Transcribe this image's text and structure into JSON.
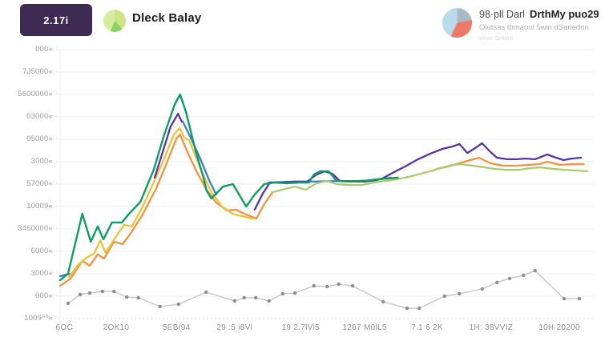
{
  "header": {
    "badge_label": "2.17i",
    "title": "Dleck Balay",
    "legend": {
      "line1_regular": "98·pll Darl",
      "line1_bold": "DrthMy puo29",
      "line2": "Olutsas tbmaoul 5win dSarledon",
      "line3": "Wost Grharti"
    }
  },
  "colors": {
    "badge_bg": "#3e2a53",
    "pie1_light": "#d6ec9f",
    "pie1_mid": "#c9e587",
    "pie1_dark": "#8ad364",
    "pie2_blue": "#b7dbe9",
    "pie2_red": "#ee7a66",
    "pie2_gray": "#aab9c3",
    "grid": "#f1f1f1",
    "axis_text": "#9b9b9b"
  },
  "chart_data": {
    "type": "line",
    "title": "",
    "xlabel": "",
    "ylabel": "",
    "grid": true,
    "legend_position": "top-right",
    "x_unit": "percent of plot width (0-100)",
    "y_unit": "gridline index from bottom (0) to top (12)",
    "ylim": [
      0,
      12
    ],
    "y_tick_labels": [
      "000«",
      "7J5000«",
      "5600000«",
      "03000«",
      "05000«",
      "3000«",
      "57000«",
      "10009«",
      "3460000«",
      "6000«",
      "3000«",
      "000«",
      "1009⁹⁰«"
    ],
    "x_tick_labels": [
      "6OC",
      "2OK10",
      "5EB/94",
      "29 :5 i8Vl",
      "19 2.7lVl5",
      "1267 M0lL5",
      "7.1 6 2K",
      "1H: 38VVIZ",
      "10H 20200"
    ],
    "x_tick_pct": [
      0.8,
      10.6,
      22.0,
      33.0,
      45.5,
      57.6,
      69.4,
      81.5,
      94.4
    ],
    "series": [
      {
        "name": "gray-dotted",
        "color": "#c7c7c7",
        "marker_color": "#8d8d8d",
        "width": 1.4,
        "markers": true,
        "segments": [
          [
            [
              1.5,
              0.68
            ],
            [
              3.8,
              1.07
            ],
            [
              5.6,
              1.14
            ],
            [
              8.0,
              1.21
            ],
            [
              10.2,
              1.21
            ],
            [
              12.6,
              0.96
            ],
            [
              14.8,
              0.93
            ],
            [
              18.9,
              0.54
            ],
            [
              22.4,
              0.64
            ],
            [
              27.6,
              1.18
            ],
            [
              33.0,
              0.79
            ],
            [
              34.8,
              0.93
            ],
            [
              37.0,
              0.93
            ],
            [
              39.5,
              0.79
            ],
            [
              42.1,
              1.11
            ],
            [
              44.4,
              1.14
            ],
            [
              48.0,
              1.46
            ],
            [
              50.5,
              1.43
            ],
            [
              52.7,
              1.54
            ],
            [
              55.3,
              1.46
            ],
            [
              61.1,
              0.75
            ],
            [
              65.6,
              0.46
            ],
            [
              67.9,
              0.46
            ],
            [
              72.7,
              1.0
            ],
            [
              75.5,
              1.11
            ],
            [
              79.8,
              1.32
            ],
            [
              82.6,
              1.61
            ],
            [
              85.0,
              1.79
            ],
            [
              87.6,
              1.93
            ],
            [
              89.8,
              2.14
            ],
            [
              95.3,
              0.89
            ],
            [
              98.2,
              0.89
            ]
          ]
        ]
      },
      {
        "name": "blue",
        "color": "#3d7cd0",
        "width": 2.3,
        "markers": false,
        "segments": [
          [
            [
              0,
              1.89
            ],
            [
              1.1,
              1.96
            ],
            [
              2.3,
              2.0
            ]
          ],
          [
            [
              23.2,
              8.79
            ],
            [
              24.7,
              8.07
            ],
            [
              26.5,
              7.14
            ],
            [
              28.3,
              6.11
            ],
            [
              29.5,
              5.54
            ]
          ],
          [
            [
              39.4,
              6.07
            ],
            [
              43.9,
              6.11
            ],
            [
              47.0,
              6.11
            ],
            [
              52.9,
              6.14
            ],
            [
              56.1,
              6.14
            ],
            [
              59.1,
              6.18
            ],
            [
              62.6,
              6.29
            ]
          ]
        ]
      },
      {
        "name": "orange",
        "color": "#f5923e",
        "width": 2.3,
        "markers": false,
        "segments": [
          [
            [
              0,
              1.46
            ],
            [
              2.0,
              1.79
            ],
            [
              4.2,
              2.57
            ],
            [
              5.6,
              2.36
            ],
            [
              7.1,
              2.86
            ],
            [
              8.3,
              2.68
            ],
            [
              10.2,
              3.43
            ],
            [
              11.8,
              3.32
            ],
            [
              13.3,
              3.79
            ],
            [
              15.6,
              4.64
            ],
            [
              18.2,
              5.82
            ],
            [
              20.2,
              6.96
            ],
            [
              22.0,
              8.04
            ],
            [
              22.7,
              8.21
            ],
            [
              24.2,
              7.36
            ],
            [
              26.1,
              6.43
            ],
            [
              27.7,
              5.75
            ],
            [
              29.5,
              5.18
            ],
            [
              31.5,
              4.82
            ],
            [
              33.3,
              4.86
            ],
            [
              34.5,
              4.71
            ],
            [
              37.1,
              4.46
            ],
            [
              38.6,
              5.11
            ],
            [
              40.2,
              5.64
            ]
          ],
          [
            [
              70.5,
              6.59
            ],
            [
              71.2,
              6.68
            ],
            [
              73.5,
              6.79
            ],
            [
              76.5,
              7.0
            ],
            [
              79.2,
              7.18
            ],
            [
              81.4,
              6.93
            ],
            [
              83.8,
              6.82
            ],
            [
              86.4,
              6.82
            ],
            [
              88.6,
              6.86
            ],
            [
              90.6,
              6.89
            ],
            [
              92.1,
              7.0
            ],
            [
              94.4,
              6.86
            ],
            [
              96.7,
              6.89
            ],
            [
              99.0,
              6.89
            ]
          ]
        ]
      },
      {
        "name": "yellow",
        "color": "#eac33d",
        "width": 2.3,
        "markers": false,
        "segments": [
          [
            [
              1.7,
              1.86
            ],
            [
              3.5,
              2.43
            ],
            [
              5.0,
              2.71
            ],
            [
              6.5,
              2.93
            ],
            [
              7.6,
              3.5
            ],
            [
              8.6,
              2.93
            ],
            [
              10.3,
              3.57
            ],
            [
              12.1,
              4.18
            ],
            [
              13.6,
              4.11
            ],
            [
              15.6,
              5.0
            ],
            [
              17.7,
              6.07
            ],
            [
              19.7,
              7.14
            ],
            [
              21.5,
              8.21
            ],
            [
              22.6,
              8.5
            ],
            [
              23.5,
              8.07
            ],
            [
              24.4,
              7.96
            ],
            [
              25.3,
              7.43
            ],
            [
              26.8,
              6.54
            ],
            [
              28.6,
              5.64
            ],
            [
              30.6,
              5.0
            ],
            [
              32.6,
              4.68
            ],
            [
              34.4,
              4.57
            ],
            [
              36.4,
              4.46
            ]
          ]
        ]
      },
      {
        "name": "lightgreen",
        "color": "#abc96f",
        "width": 2.2,
        "markers": false,
        "segments": [
          [
            [
              40.2,
              5.64
            ],
            [
              42.0,
              5.75
            ],
            [
              44.4,
              5.89
            ],
            [
              46.4,
              5.75
            ],
            [
              48.5,
              6.04
            ],
            [
              50.5,
              6.14
            ],
            [
              52.3,
              6.0
            ],
            [
              54.7,
              5.96
            ],
            [
              57.1,
              5.96
            ],
            [
              59.4,
              6.07
            ],
            [
              61.4,
              6.14
            ],
            [
              63.6,
              6.21
            ],
            [
              65.9,
              6.32
            ],
            [
              68.2,
              6.46
            ],
            [
              70.5,
              6.61
            ],
            [
              72.4,
              6.75
            ],
            [
              74.4,
              6.86
            ],
            [
              75.8,
              6.89
            ],
            [
              78.0,
              6.82
            ],
            [
              80.2,
              6.75
            ],
            [
              82.1,
              6.68
            ],
            [
              84.4,
              6.64
            ],
            [
              86.7,
              6.64
            ],
            [
              88.9,
              6.71
            ],
            [
              90.8,
              6.75
            ],
            [
              93.2,
              6.68
            ],
            [
              95.5,
              6.64
            ],
            [
              97.4,
              6.61
            ],
            [
              99.7,
              6.57
            ]
          ]
        ]
      },
      {
        "name": "purple",
        "color": "#5a33a2",
        "width": 2.3,
        "markers": false,
        "segments": [
          [
            [
              17.9,
              6.29
            ],
            [
              19.4,
              7.43
            ],
            [
              20.9,
              8.57
            ],
            [
              22.3,
              9.14
            ],
            [
              23.0,
              8.79
            ]
          ],
          [
            [
              36.8,
              4.86
            ],
            [
              38.3,
              5.57
            ],
            [
              39.7,
              6.07
            ],
            [
              42.0,
              6.07
            ],
            [
              44.4,
              6.11
            ],
            [
              46.7,
              6.11
            ],
            [
              48.5,
              6.43
            ],
            [
              50.0,
              6.57
            ],
            [
              51.5,
              6.46
            ],
            [
              52.9,
              6.14
            ],
            [
              55.3,
              6.11
            ],
            [
              57.7,
              6.11
            ],
            [
              59.8,
              6.18
            ],
            [
              60.9,
              6.25
            ],
            [
              63.2,
              6.54
            ],
            [
              65.5,
              6.82
            ],
            [
              67.7,
              7.11
            ],
            [
              70.0,
              7.36
            ],
            [
              72.3,
              7.57
            ],
            [
              74.2,
              7.68
            ],
            [
              75.5,
              7.79
            ],
            [
              77.0,
              7.39
            ],
            [
              78.5,
              7.61
            ],
            [
              79.8,
              7.82
            ],
            [
              81.4,
              7.43
            ],
            [
              82.6,
              7.18
            ],
            [
              84.5,
              7.11
            ],
            [
              86.4,
              7.11
            ],
            [
              87.9,
              7.14
            ],
            [
              89.8,
              7.11
            ],
            [
              92.1,
              7.32
            ],
            [
              93.8,
              7.18
            ],
            [
              95.2,
              7.07
            ],
            [
              96.7,
              7.14
            ],
            [
              98.5,
              7.18
            ]
          ]
        ]
      },
      {
        "name": "green",
        "color": "#0e9d63",
        "width": 2.4,
        "markers": false,
        "segments": [
          [
            [
              0,
              1.71
            ],
            [
              1.5,
              2.0
            ],
            [
              4.2,
              4.68
            ],
            [
              5.8,
              3.43
            ],
            [
              7.1,
              4.11
            ],
            [
              8.2,
              3.54
            ],
            [
              9.8,
              4.29
            ],
            [
              11.7,
              4.29
            ],
            [
              12.9,
              4.64
            ],
            [
              15.2,
              5.21
            ],
            [
              17.7,
              6.64
            ],
            [
              19.7,
              8.21
            ],
            [
              21.7,
              9.57
            ],
            [
              22.7,
              10.0
            ],
            [
              23.8,
              9.21
            ],
            [
              25.6,
              7.5
            ],
            [
              27.1,
              6.29
            ],
            [
              27.7,
              5.71
            ],
            [
              28.6,
              5.36
            ],
            [
              30.8,
              5.89
            ],
            [
              32.7,
              6.0
            ],
            [
              34.1,
              5.43
            ],
            [
              35.2,
              5.0
            ],
            [
              36.8,
              5.54
            ],
            [
              38.6,
              6.0
            ],
            [
              40.5,
              6.07
            ],
            [
              42.9,
              6.04
            ],
            [
              45.0,
              6.07
            ],
            [
              47.0,
              6.07
            ],
            [
              48.0,
              6.43
            ],
            [
              49.2,
              6.57
            ],
            [
              50.8,
              6.57
            ],
            [
              52.3,
              6.14
            ],
            [
              55.0,
              6.11
            ],
            [
              57.6,
              6.14
            ],
            [
              59.8,
              6.21
            ],
            [
              61.8,
              6.25
            ],
            [
              63.9,
              6.29
            ]
          ]
        ]
      }
    ]
  }
}
